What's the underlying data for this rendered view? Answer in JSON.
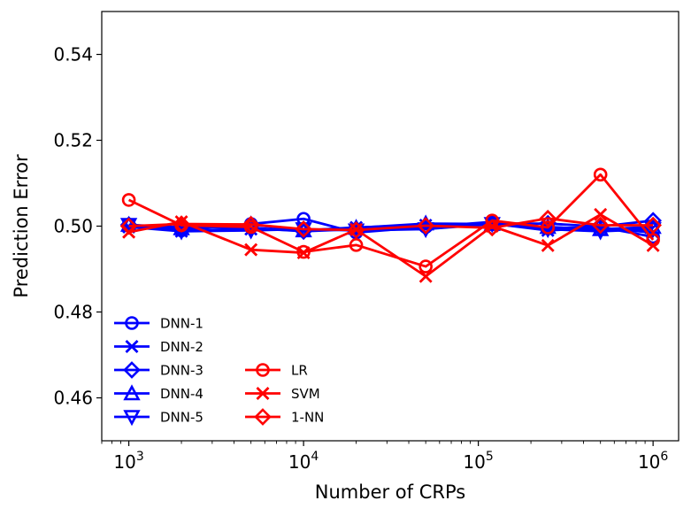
{
  "chart_data": {
    "type": "line",
    "xscale": "log",
    "xlabel": "Number of CRPs",
    "ylabel": "Prediction Error",
    "xlim": [
      700,
      1400000
    ],
    "ylim": [
      0.45,
      0.55
    ],
    "grid": false,
    "x": [
      1000,
      2000,
      5000,
      10000,
      20000,
      50000,
      120000,
      250000,
      500000,
      1000000
    ],
    "x_ticks": [
      {
        "value": 1000,
        "base": "10",
        "exp": "3"
      },
      {
        "value": 10000,
        "base": "10",
        "exp": "4"
      },
      {
        "value": 100000,
        "base": "10",
        "exp": "5"
      },
      {
        "value": 1000000,
        "base": "10",
        "exp": "6"
      }
    ],
    "y_ticks": [
      {
        "value": 0.46,
        "label": "0.46"
      },
      {
        "value": 0.48,
        "label": "0.48"
      },
      {
        "value": 0.5,
        "label": "0.50"
      },
      {
        "value": 0.52,
        "label": "0.52"
      },
      {
        "value": 0.54,
        "label": "0.54"
      }
    ],
    "legend_position": "lower-left",
    "series": [
      {
        "name": "DNN-1",
        "color": "#0000ff",
        "marker": "circle",
        "values": [
          0.5003,
          0.499,
          0.5005,
          0.5017,
          0.4985,
          0.4998,
          0.501,
          0.4995,
          0.4998,
          0.4975
        ]
      },
      {
        "name": "DNN-2",
        "color": "#0000ff",
        "marker": "x",
        "values": [
          0.4998,
          0.4988,
          0.4993,
          0.499,
          0.4997,
          0.5002,
          0.5006,
          0.499,
          0.4996,
          0.4985
        ]
      },
      {
        "name": "DNN-3",
        "color": "#0000ff",
        "marker": "diamond",
        "values": [
          0.5003,
          0.4997,
          0.4996,
          0.4988,
          0.4993,
          0.4998,
          0.5006,
          0.5006,
          0.4999,
          0.5013
        ]
      },
      {
        "name": "DNN-4",
        "color": "#0000ff",
        "marker": "triangle-up",
        "values": [
          0.5003,
          0.4995,
          0.5004,
          0.499,
          0.4996,
          0.5006,
          0.5005,
          0.4998,
          0.4993,
          0.4998
        ]
      },
      {
        "name": "DNN-5",
        "color": "#0000ff",
        "marker": "triangle-down",
        "values": [
          0.5003,
          0.4988,
          0.499,
          0.4993,
          0.499,
          0.4993,
          0.5005,
          0.4993,
          0.4988,
          0.4993
        ]
      },
      {
        "name": "LR",
        "color": "#ff0000",
        "marker": "circle",
        "values": [
          0.5061,
          0.5002,
          0.4998,
          0.494,
          0.4956,
          0.4906,
          0.5013,
          0.4997,
          0.512,
          0.4968
        ]
      },
      {
        "name": "SVM",
        "color": "#ff0000",
        "marker": "x",
        "values": [
          0.4986,
          0.501,
          0.4945,
          0.4938,
          0.4992,
          0.4883,
          0.5,
          0.4955,
          0.5027,
          0.4955
        ]
      },
      {
        "name": "1-NN",
        "color": "#ff0000",
        "marker": "diamond",
        "values": [
          0.5,
          0.5005,
          0.5004,
          0.4993,
          0.4991,
          0.5001,
          0.4996,
          0.5018,
          0.5002,
          0.5002
        ]
      }
    ]
  }
}
